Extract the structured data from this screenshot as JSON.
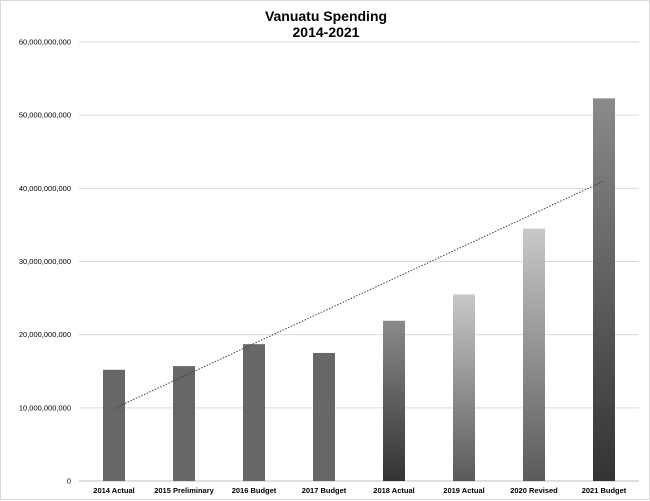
{
  "chart_data": {
    "type": "bar",
    "title": [
      "Vanuatu Spending",
      "2014-2021"
    ],
    "xlabel": "",
    "ylabel": "",
    "categories": [
      "2014 Actual",
      "2015 Preliminary",
      "2016 Budget",
      "2017 Budget",
      "2018 Actual",
      "2019 Actual",
      "2020 Revised",
      "2021 Budget"
    ],
    "values": [
      15200000000,
      15700000000,
      18700000000,
      17500000000,
      21900000000,
      25500000000,
      34500000000,
      52300000000
    ],
    "ylim": [
      0,
      60000000000
    ],
    "yticks": [
      0,
      10000000000,
      20000000000,
      30000000000,
      40000000000,
      50000000000,
      60000000000
    ],
    "ytick_labels": [
      "0",
      "10,000,000,000",
      "20,000,000,000",
      "30,000,000,000",
      "40,000,000,000",
      "50,000,000,000",
      "60,000,000,000"
    ],
    "grid": true,
    "legend": false,
    "trendline": {
      "type": "linear",
      "style": "dotted",
      "start_value": 9900000000,
      "end_value": 41000000000
    },
    "bar_styles": [
      "solid-dark",
      "solid-dark",
      "solid-dark",
      "solid-dark",
      "gradient-dark-bottom",
      "gradient-light-top",
      "gradient-light-top",
      "gradient-dark-bottom"
    ],
    "colors": {
      "solid": "#676767",
      "dark": "#333333",
      "mid": "#8a8a8a",
      "light": "#c8c8c8",
      "grid": "#d9d9d9",
      "trend": "#404040"
    }
  }
}
